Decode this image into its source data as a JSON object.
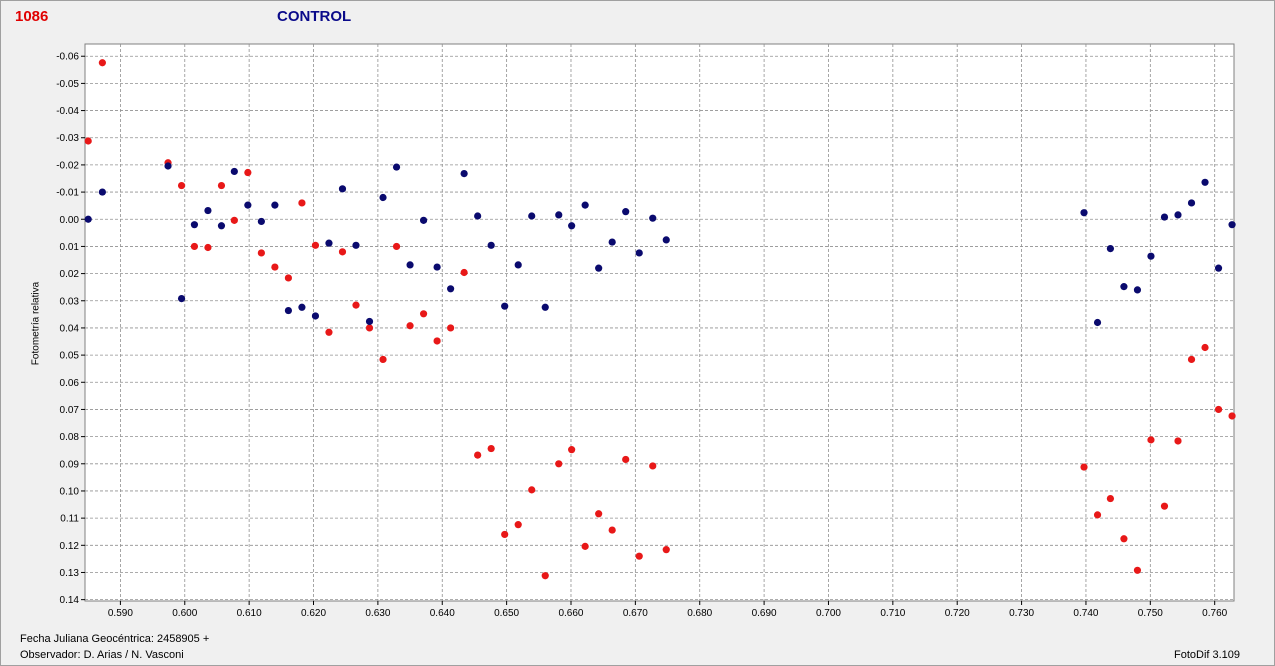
{
  "header": {
    "star_id": "1086",
    "mode": "CONTROL"
  },
  "footer": {
    "jd_label": "Fecha Juliana Geocéntrica: 2458905 +",
    "observer": "Observador: D. Arias / N. Vasconi",
    "software": "FotoDif 3.109"
  },
  "colors": {
    "target": "#e81818",
    "control": "#0a0a6e",
    "grid": "#909090",
    "background": "#ffffff"
  },
  "chart_data": {
    "type": "scatter",
    "title": "",
    "xlabel": "",
    "ylabel": "Fotometría relativa",
    "xlim": [
      0.5845,
      0.763
    ],
    "ylim": [
      -0.0645,
      0.1405
    ],
    "y_inverted": true,
    "grid": true,
    "x_ticks": [
      "0.590",
      "0.600",
      "0.610",
      "0.620",
      "0.630",
      "0.640",
      "0.650",
      "0.660",
      "0.670",
      "0.680",
      "0.690",
      "0.700",
      "0.710",
      "0.720",
      "0.730",
      "0.740",
      "0.750",
      "0.760"
    ],
    "y_ticks": [
      "-0.06",
      "-0.05",
      "-0.04",
      "-0.03",
      "-0.02",
      "-0.01",
      "0.00",
      "0.01",
      "0.02",
      "0.03",
      "0.04",
      "0.05",
      "0.06",
      "0.07",
      "0.08",
      "0.09",
      "0.10",
      "0.11",
      "0.12",
      "0.13",
      "0.14"
    ],
    "series": [
      {
        "color": "#e81818",
        "points": [
          [
            0.585,
            -0.0288
          ],
          [
            0.5872,
            -0.0576
          ],
          [
            0.5974,
            -0.0208
          ],
          [
            0.5995,
            -0.0124
          ],
          [
            0.6015,
            0.01
          ],
          [
            0.6036,
            0.0104
          ],
          [
            0.6057,
            -0.0124
          ],
          [
            0.6077,
            0.0004
          ],
          [
            0.6098,
            -0.0172
          ],
          [
            0.6119,
            0.0124
          ],
          [
            0.614,
            0.0176
          ],
          [
            0.6161,
            0.0216
          ],
          [
            0.6182,
            -0.006
          ],
          [
            0.6203,
            0.0096
          ],
          [
            0.6224,
            0.0416
          ],
          [
            0.6245,
            0.012
          ],
          [
            0.6266,
            0.0316
          ],
          [
            0.6287,
            0.04
          ],
          [
            0.6308,
            0.0516
          ],
          [
            0.6329,
            0.01
          ],
          [
            0.635,
            0.0392
          ],
          [
            0.6371,
            0.0348
          ],
          [
            0.6392,
            0.0448
          ],
          [
            0.6413,
            0.04
          ],
          [
            0.6434,
            0.0196
          ],
          [
            0.6455,
            0.0868
          ],
          [
            0.6476,
            0.0844
          ],
          [
            0.6497,
            0.116
          ],
          [
            0.6518,
            0.1124
          ],
          [
            0.6539,
            0.0996
          ],
          [
            0.656,
            0.1312
          ],
          [
            0.6581,
            0.09
          ],
          [
            0.6601,
            0.0848
          ],
          [
            0.6622,
            0.1204
          ],
          [
            0.6643,
            0.1084
          ],
          [
            0.6664,
            0.1144
          ],
          [
            0.6685,
            0.0884
          ],
          [
            0.6706,
            0.124
          ],
          [
            0.6727,
            0.0908
          ],
          [
            0.6748,
            0.1216
          ],
          [
            0.7397,
            0.0912
          ],
          [
            0.7418,
            0.1088
          ],
          [
            0.7438,
            0.1028
          ],
          [
            0.7459,
            0.1176
          ],
          [
            0.748,
            0.1292
          ],
          [
            0.7501,
            0.0812
          ],
          [
            0.7522,
            0.1056
          ],
          [
            0.7543,
            0.0816
          ],
          [
            0.7564,
            0.0516
          ],
          [
            0.7585,
            0.0472
          ],
          [
            0.7606,
            0.07
          ],
          [
            0.7627,
            0.0724
          ]
        ]
      },
      {
        "color": "#0a0a6e",
        "points": [
          [
            0.585,
            0.0
          ],
          [
            0.5872,
            -0.01
          ],
          [
            0.5974,
            -0.0196
          ],
          [
            0.5995,
            0.0292
          ],
          [
            0.6015,
            0.002
          ],
          [
            0.6036,
            -0.0032
          ],
          [
            0.6057,
            0.0024
          ],
          [
            0.6077,
            -0.0176
          ],
          [
            0.6098,
            -0.0052
          ],
          [
            0.6119,
            0.0008
          ],
          [
            0.614,
            -0.0052
          ],
          [
            0.6161,
            0.0336
          ],
          [
            0.6182,
            0.0324
          ],
          [
            0.6203,
            0.0356
          ],
          [
            0.6224,
            0.0088
          ],
          [
            0.6245,
            -0.0112
          ],
          [
            0.6266,
            0.0096
          ],
          [
            0.6287,
            0.0376
          ],
          [
            0.6308,
            -0.008
          ],
          [
            0.6329,
            -0.0192
          ],
          [
            0.635,
            0.0168
          ],
          [
            0.6371,
            0.0004
          ],
          [
            0.6392,
            0.0176
          ],
          [
            0.6413,
            0.0256
          ],
          [
            0.6434,
            -0.0168
          ],
          [
            0.6455,
            -0.0012
          ],
          [
            0.6476,
            0.0096
          ],
          [
            0.6497,
            0.032
          ],
          [
            0.6518,
            0.0168
          ],
          [
            0.6539,
            -0.0012
          ],
          [
            0.656,
            0.0324
          ],
          [
            0.6581,
            -0.0016
          ],
          [
            0.6601,
            0.0024
          ],
          [
            0.6622,
            -0.0052
          ],
          [
            0.6643,
            0.018
          ],
          [
            0.6664,
            0.0084
          ],
          [
            0.6685,
            -0.0028
          ],
          [
            0.6706,
            0.0124
          ],
          [
            0.6727,
            -0.0004
          ],
          [
            0.6748,
            0.0076
          ],
          [
            0.7397,
            -0.0024
          ],
          [
            0.7418,
            0.038
          ],
          [
            0.7438,
            0.0108
          ],
          [
            0.7459,
            0.0248
          ],
          [
            0.748,
            0.026
          ],
          [
            0.7501,
            0.0136
          ],
          [
            0.7522,
            -0.0008
          ],
          [
            0.7543,
            -0.0016
          ],
          [
            0.7564,
            -0.006
          ],
          [
            0.7585,
            -0.0136
          ],
          [
            0.7606,
            0.018
          ],
          [
            0.7627,
            0.002
          ]
        ]
      }
    ]
  }
}
